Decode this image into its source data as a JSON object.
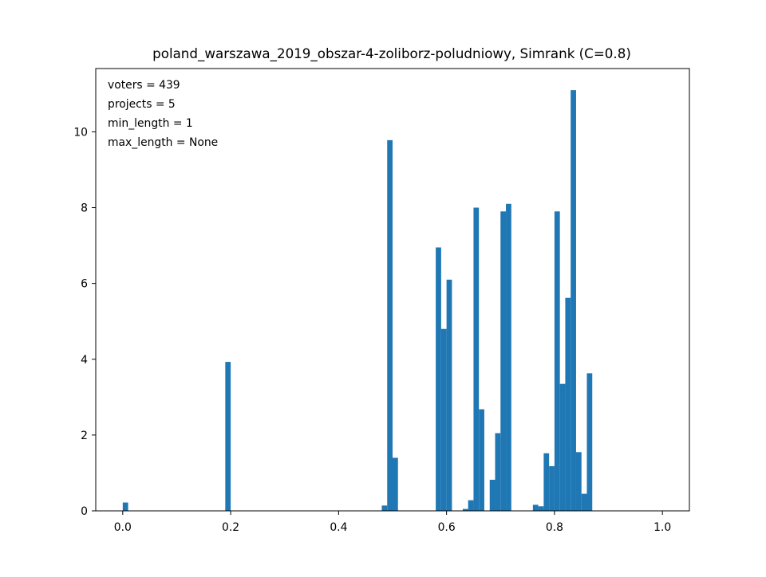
{
  "chart_data": {
    "type": "bar",
    "title": "poland_warszawa_2019_obszar-4-zoliborz-poludniowy, Simrank (C=0.8)",
    "xlabel": "",
    "ylabel": "",
    "xlim": [
      -0.05,
      1.05
    ],
    "ylim": [
      0,
      11.67
    ],
    "x_ticks": [
      0.0,
      0.2,
      0.4,
      0.6,
      0.8,
      1.0
    ],
    "x_tick_labels": [
      "0.0",
      "0.2",
      "0.4",
      "0.6",
      "0.8",
      "1.0"
    ],
    "y_ticks": [
      0,
      2,
      4,
      6,
      8,
      10
    ],
    "y_tick_labels": [
      "0",
      "2",
      "4",
      "6",
      "8",
      "10"
    ],
    "grid": false,
    "bin_width": 0.01,
    "bar_color": "#1f77b4",
    "bins": [
      {
        "x": 0.0,
        "value": 0.22
      },
      {
        "x": 0.19,
        "value": 3.93
      },
      {
        "x": 0.48,
        "value": 0.14
      },
      {
        "x": 0.49,
        "value": 9.78
      },
      {
        "x": 0.5,
        "value": 1.4
      },
      {
        "x": 0.58,
        "value": 6.95
      },
      {
        "x": 0.59,
        "value": 4.8
      },
      {
        "x": 0.6,
        "value": 6.1
      },
      {
        "x": 0.63,
        "value": 0.05
      },
      {
        "x": 0.64,
        "value": 0.28
      },
      {
        "x": 0.65,
        "value": 8.0
      },
      {
        "x": 0.66,
        "value": 2.68
      },
      {
        "x": 0.68,
        "value": 0.82
      },
      {
        "x": 0.69,
        "value": 2.05
      },
      {
        "x": 0.7,
        "value": 7.9
      },
      {
        "x": 0.71,
        "value": 8.1
      },
      {
        "x": 0.76,
        "value": 0.16
      },
      {
        "x": 0.77,
        "value": 0.12
      },
      {
        "x": 0.78,
        "value": 1.52
      },
      {
        "x": 0.79,
        "value": 1.18
      },
      {
        "x": 0.8,
        "value": 7.9
      },
      {
        "x": 0.81,
        "value": 3.35
      },
      {
        "x": 0.82,
        "value": 5.62
      },
      {
        "x": 0.83,
        "value": 11.1
      },
      {
        "x": 0.84,
        "value": 1.55
      },
      {
        "x": 0.85,
        "value": 0.45
      },
      {
        "x": 0.86,
        "value": 3.63
      }
    ],
    "annotations": [
      "voters = 439",
      "projects = 5",
      "min_length = 1",
      "max_length = None"
    ]
  }
}
